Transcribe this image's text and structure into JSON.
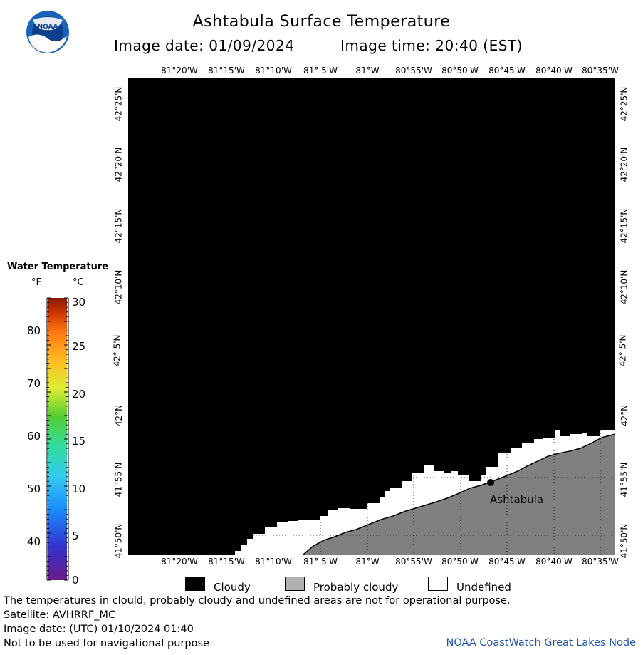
{
  "header": {
    "title": "Ashtabula Surface Temperature",
    "image_date": "Image date: 01/09/2024",
    "image_time": "Image time: 20:40 (EST)",
    "logo_text": "NOAA"
  },
  "map": {
    "lon_labels": [
      "81°20'W",
      "81°15'W",
      "81°10'W",
      "81° 5'W",
      "81°W",
      "80°55'W",
      "80°50'W",
      "80°45'W",
      "80°40'W",
      "80°35'W"
    ],
    "lat_labels": [
      "42°25'N",
      "42°20'N",
      "42°15'N",
      "42°10'N",
      "42° 5'N",
      "42°N",
      "41°55'N",
      "41°50'N"
    ],
    "city_label": "Ashtabula",
    "colors": {
      "cloud": "#000000",
      "probably_cloudy": "#808080",
      "undefined": "#ffffff"
    }
  },
  "legend": {
    "title": "Water Temperature",
    "unit_f": "°F",
    "unit_c": "°C",
    "f_ticks": [
      "80",
      "70",
      "60",
      "50",
      "40"
    ],
    "c_ticks": [
      "30",
      "25",
      "20",
      "15",
      "10",
      "5",
      "0"
    ]
  },
  "key": {
    "cloudy": "Cloudy",
    "probably_cloudy": "Probably cloudy",
    "undefined": "Undefined"
  },
  "footer": {
    "disclaimer": "The temperatures in clould, probably cloudy and undefined areas are not for operational purpose.",
    "satellite": "Satellite: AVHRRF_MC",
    "utc_date": "Image date: (UTC) 01/10/2024  01:40",
    "nav_warning": "Not to be used for navigational purpose",
    "credit": "NOAA CoastWatch Great Lakes Node"
  }
}
